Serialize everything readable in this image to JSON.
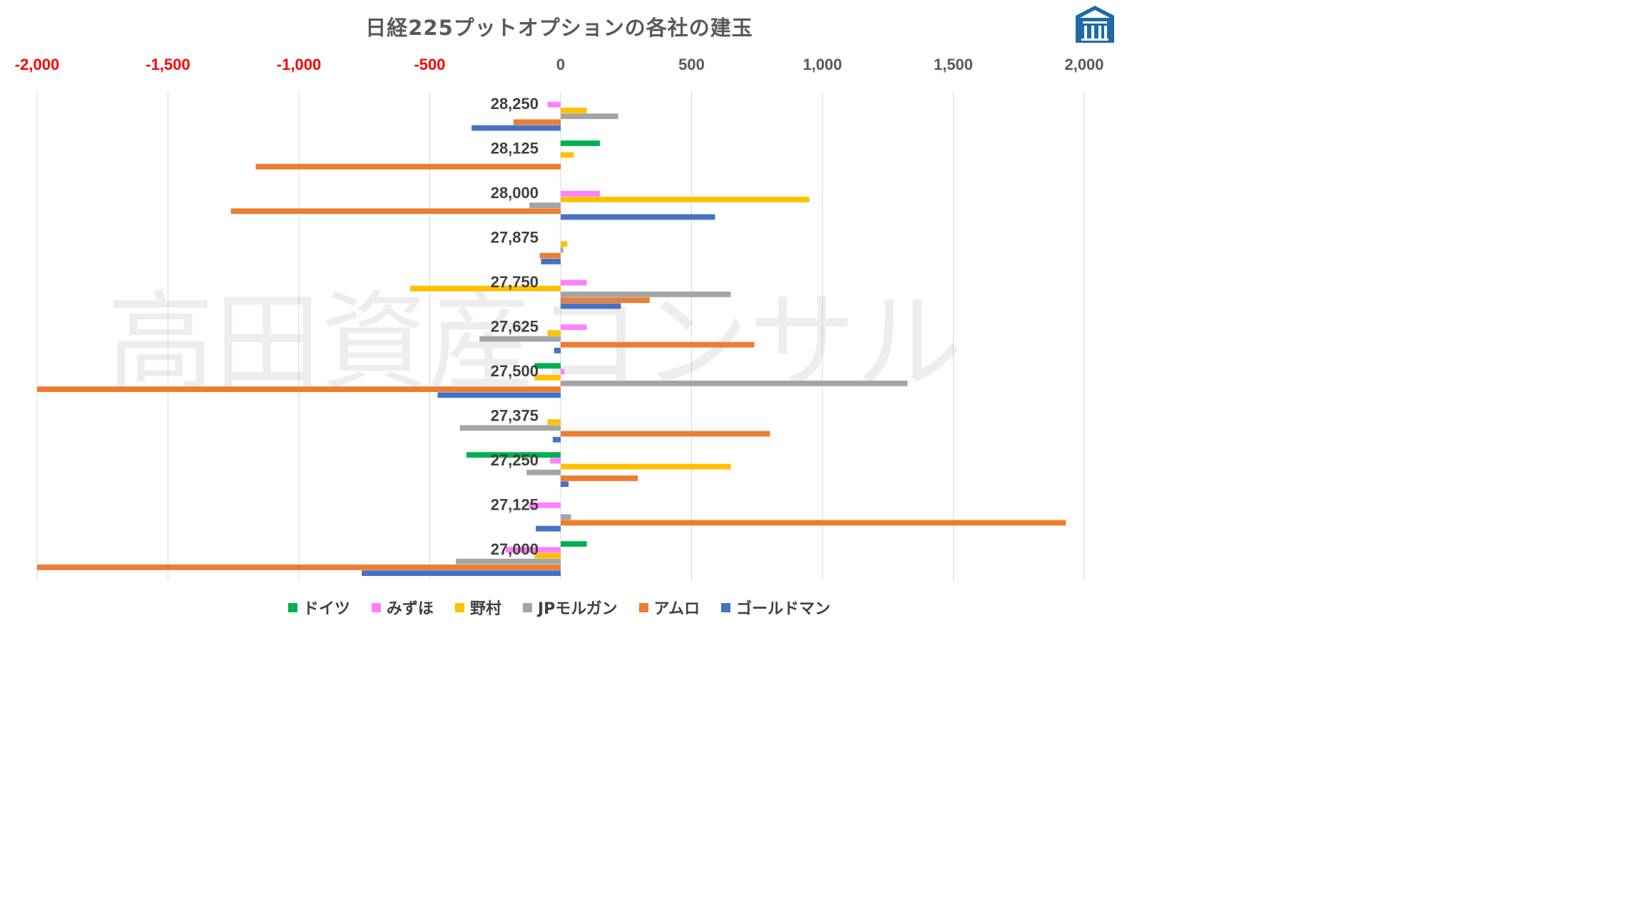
{
  "chart_data": {
    "type": "bar",
    "orientation": "horizontal",
    "title": "日経225プットオプションの各社の建玉",
    "watermark": "高田資産コンサル",
    "xlim": [
      -2000,
      2000
    ],
    "x_ticks": [
      -2000,
      -1500,
      -1000,
      -500,
      0,
      500,
      1000,
      1500,
      2000
    ],
    "x_tick_labels": [
      "-2,000",
      "-1,500",
      "-1,000",
      "-500",
      "0",
      "500",
      "1,000",
      "1,500",
      "2,000"
    ],
    "negative_tick_color": "#ff0000",
    "positive_tick_color": "#595959",
    "grid": true,
    "legend_position": "bottom",
    "categories": [
      "28,250",
      "28,125",
      "28,000",
      "27,875",
      "27,750",
      "27,625",
      "27,500",
      "27,375",
      "27,250",
      "27,125",
      "27,000"
    ],
    "series": [
      {
        "name": "ドイツ",
        "color": "#00b050",
        "values": [
          0,
          150,
          0,
          0,
          0,
          0,
          -100,
          0,
          -360,
          0,
          100
        ]
      },
      {
        "name": "みずほ",
        "color": "#ff80ff",
        "values": [
          -50,
          0,
          150,
          0,
          100,
          100,
          15,
          0,
          -40,
          -120,
          -210
        ]
      },
      {
        "name": "野村",
        "color": "#ffc000",
        "values": [
          100,
          50,
          950,
          25,
          -575,
          -50,
          -100,
          -50,
          650,
          0,
          -100
        ]
      },
      {
        "name": "JPモルガン",
        "color": "#a5a5a5",
        "values": [
          220,
          0,
          -120,
          10,
          650,
          -310,
          1325,
          -385,
          -130,
          40,
          -400
        ]
      },
      {
        "name": "アムロ",
        "color": "#ed7d31",
        "values": [
          -180,
          -1165,
          -1260,
          -80,
          340,
          740,
          -2000,
          800,
          295,
          1930,
          -2000
        ]
      },
      {
        "name": "ゴールドマン",
        "color": "#4472c4",
        "values": [
          -340,
          0,
          590,
          -75,
          230,
          -25,
          -470,
          -30,
          30,
          -95,
          -760
        ]
      }
    ]
  }
}
